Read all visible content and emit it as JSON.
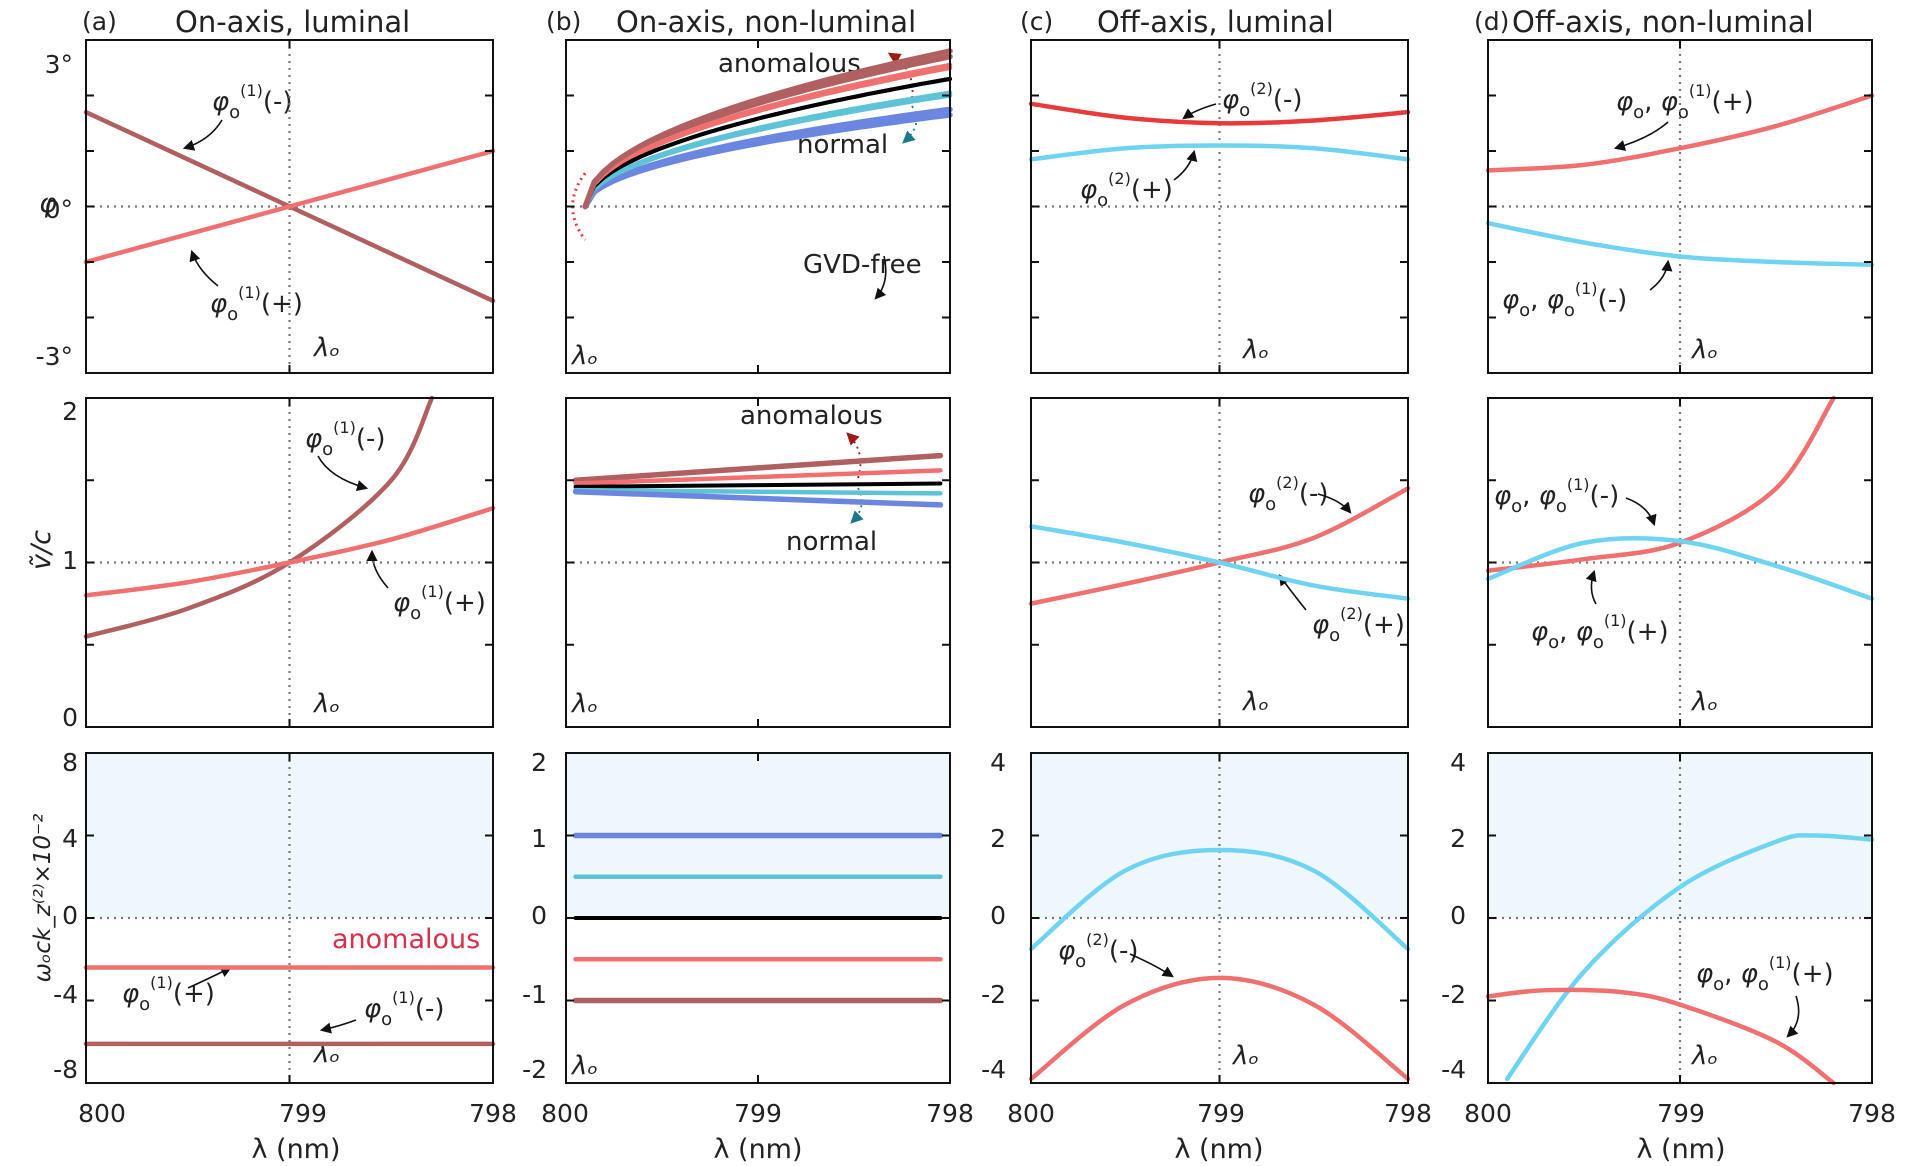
{
  "figure": {
    "columns": [
      {
        "letter": "(a)",
        "title": "On-axis, luminal"
      },
      {
        "letter": "(b)",
        "title": "On-axis, non-luminal"
      },
      {
        "letter": "(c)",
        "title": "Off-axis, luminal"
      },
      {
        "letter": "(d)",
        "title": "Off-axis, non-luminal"
      }
    ],
    "xlabel": "λ (nm)",
    "ylabels": {
      "row1": "φ",
      "row2": "ṽ/c",
      "row3": "ωₒck_z⁽²⁾×10⁻²"
    },
    "lambda0_label": "λₒ",
    "x_ticks": [
      "800",
      "799",
      "798"
    ],
    "row1_ticks": [
      "3°",
      "0°",
      "-3°"
    ],
    "row2_ticks": [
      "2",
      "1",
      "0"
    ],
    "row3a_ticks": [
      "8",
      "4",
      "0",
      "-4",
      "-8"
    ],
    "row3b_ticks": [
      "2",
      "1",
      "0",
      "-1",
      "-2"
    ],
    "row3cd_ticks": [
      "4",
      "2",
      "0",
      "-2",
      "-4"
    ],
    "region_normal": "normal",
    "region_anomalous": "anomalous",
    "label_normal": "normal",
    "label_anomalous": "anomalous",
    "label_gvd_free": "GVD-free"
  },
  "colors": {
    "red": "#f07070",
    "darkred": "#b06060",
    "brightred": "#e83a3a",
    "cyan": "#6fd3f2",
    "teal": "#5ec3d6",
    "blue": "#6a86e0",
    "black": "#000000",
    "shade": "#eef8fc",
    "normal_text": "#4fb8e0",
    "anomalous_text": "#d6304a"
  },
  "chart_data": [
    {
      "id": "a1",
      "type": "line",
      "title": "On-axis, luminal",
      "xlabel": "λ (nm)",
      "ylabel": "φ (deg)",
      "xlim": [
        800,
        798
      ],
      "ylim": [
        -3,
        3
      ],
      "series": [
        {
          "name": "φo(1)(-)",
          "color": "darkred",
          "x": [
            800,
            798
          ],
          "y": [
            1.7,
            -1.7
          ]
        },
        {
          "name": "φo(1)(+)",
          "color": "red",
          "x": [
            800,
            798
          ],
          "y": [
            -1.0,
            1.0
          ]
        }
      ]
    },
    {
      "id": "b1",
      "type": "line",
      "title": "On-axis, non-luminal",
      "xlabel": "λ (nm)",
      "ylabel": "φ (deg)",
      "xlim": [
        800,
        798
      ],
      "ylim": [
        -3,
        3
      ],
      "series": [
        {
          "name": "anomalous (outer)",
          "color": "darkred",
          "x0": 799.9,
          "y_end": 2.7,
          "sign": 1
        },
        {
          "name": "anomalous",
          "color": "red",
          "x0": 799.9,
          "y_end": 2.5,
          "sign": 1
        },
        {
          "name": "GVD-free (upper)",
          "color": "black",
          "x0": 799.9,
          "y_end": 2.3,
          "sign": 1
        },
        {
          "name": "normal",
          "color": "teal",
          "x0": 799.9,
          "y_end": 2.05,
          "sign": 1
        },
        {
          "name": "normal (outer)",
          "color": "blue",
          "x0": 799.9,
          "y_end": 1.75,
          "sign": 1
        },
        {
          "name": "normal (outer, lower)",
          "color": "blue",
          "x0": 799.9,
          "y_end": -1.65,
          "sign": -1
        },
        {
          "name": "normal (lower)",
          "color": "teal",
          "x0": 799.9,
          "y_end": -2.0,
          "sign": -1
        },
        {
          "name": "GVD-free",
          "color": "black",
          "x0": 799.9,
          "y_end": -2.3,
          "sign": -1
        },
        {
          "name": "anomalous (lower)",
          "color": "red",
          "x0": 799.9,
          "y_end": -2.55,
          "sign": -1
        },
        {
          "name": "anomalous (outer, lower)",
          "color": "darkred",
          "x0": 799.9,
          "y_end": -2.8,
          "sign": -1
        }
      ]
    },
    {
      "id": "c1",
      "type": "line",
      "title": "Off-axis, luminal",
      "xlabel": "λ (nm)",
      "ylabel": "φ (deg)",
      "xlim": [
        800,
        798
      ],
      "ylim": [
        -3,
        3
      ],
      "series": [
        {
          "name": "φo(2)(-)",
          "color": "brightred",
          "x": [
            800,
            799.5,
            799,
            798.5,
            798
          ],
          "y": [
            1.85,
            1.6,
            1.5,
            1.55,
            1.7
          ]
        },
        {
          "name": "φo(2)(+)",
          "color": "cyan",
          "x": [
            800,
            799.5,
            799,
            798.5,
            798
          ],
          "y": [
            0.85,
            1.05,
            1.1,
            1.05,
            0.85
          ]
        }
      ]
    },
    {
      "id": "d1",
      "type": "line",
      "title": "Off-axis, non-luminal",
      "xlabel": "λ (nm)",
      "ylabel": "φ (deg)",
      "xlim": [
        800,
        798
      ],
      "ylim": [
        -3,
        3
      ],
      "series": [
        {
          "name": "φo, φo(1)(+)",
          "color": "red",
          "x": [
            800,
            799.5,
            799,
            798.5,
            798
          ],
          "y": [
            0.65,
            0.75,
            1.05,
            1.45,
            2.0
          ]
        },
        {
          "name": "φo, φo(1)(-)",
          "color": "cyan",
          "x": [
            800,
            799.5,
            799,
            798.5,
            798
          ],
          "y": [
            -0.3,
            -0.65,
            -0.9,
            -1.0,
            -1.05
          ]
        }
      ]
    },
    {
      "id": "a2",
      "type": "line",
      "xlabel": "λ (nm)",
      "ylabel": "ṽ/c",
      "xlim": [
        800,
        798
      ],
      "ylim": [
        0,
        2
      ],
      "series": [
        {
          "name": "φo(1)(-)",
          "color": "darkred",
          "x": [
            800,
            799.5,
            799,
            798.5,
            798.3
          ],
          "y": [
            0.55,
            0.72,
            1.0,
            1.5,
            2.0
          ]
        },
        {
          "name": "φo(1)(+)",
          "color": "red",
          "x": [
            800,
            799.5,
            799,
            798.5,
            798
          ],
          "y": [
            0.8,
            0.88,
            1.0,
            1.14,
            1.33
          ]
        }
      ]
    },
    {
      "id": "b2",
      "type": "line",
      "xlabel": "λ (nm)",
      "ylabel": "ṽ/c",
      "xlim": [
        800,
        798
      ],
      "ylim": [
        0,
        2
      ],
      "series": [
        {
          "name": "anomalous (outer)",
          "color": "darkred",
          "x": [
            799.95,
            798.05
          ],
          "y": [
            1.5,
            1.65
          ]
        },
        {
          "name": "anomalous",
          "color": "red",
          "x": [
            799.95,
            798.05
          ],
          "y": [
            1.48,
            1.56
          ]
        },
        {
          "name": "GVD-free",
          "color": "black",
          "x": [
            799.95,
            798.05
          ],
          "y": [
            1.46,
            1.48
          ]
        },
        {
          "name": "normal",
          "color": "teal",
          "x": [
            799.95,
            798.05
          ],
          "y": [
            1.44,
            1.42
          ]
        },
        {
          "name": "normal (outer)",
          "color": "blue",
          "x": [
            799.95,
            798.05
          ],
          "y": [
            1.43,
            1.35
          ]
        }
      ]
    },
    {
      "id": "c2",
      "type": "line",
      "xlabel": "λ (nm)",
      "ylabel": "ṽ/c",
      "xlim": [
        800,
        798
      ],
      "ylim": [
        0,
        2
      ],
      "series": [
        {
          "name": "φo(2)(-)",
          "color": "red",
          "x": [
            800,
            799.5,
            799,
            798.5,
            798
          ],
          "y": [
            0.75,
            0.87,
            1.0,
            1.15,
            1.45
          ]
        },
        {
          "name": "φo(2)(+)",
          "color": "cyan",
          "x": [
            800,
            799.5,
            799,
            798.5,
            798
          ],
          "y": [
            1.22,
            1.12,
            1.0,
            0.86,
            0.78
          ]
        }
      ]
    },
    {
      "id": "d2",
      "type": "line",
      "xlabel": "λ (nm)",
      "ylabel": "ṽ/c",
      "xlim": [
        800,
        798
      ],
      "ylim": [
        0,
        2
      ],
      "series": [
        {
          "name": "φo, φo(1)(+)",
          "color": "red",
          "x": [
            800,
            799.5,
            799,
            798.5,
            798.2
          ],
          "y": [
            0.95,
            1.02,
            1.12,
            1.45,
            2.0
          ]
        },
        {
          "name": "φo, φo(1)(-)",
          "color": "cyan",
          "x": [
            800,
            799.5,
            799,
            798.5,
            798
          ],
          "y": [
            0.9,
            1.12,
            1.13,
            0.98,
            0.78
          ]
        }
      ]
    },
    {
      "id": "a3",
      "type": "line",
      "xlabel": "λ (nm)",
      "ylabel": "ωₒck_z⁽²⁾×10⁻²",
      "xlim": [
        800,
        798
      ],
      "ylim": [
        -8,
        8
      ],
      "shaded_ylim": [
        0,
        8
      ],
      "series": [
        {
          "name": "φo(1)(+)",
          "color": "red",
          "x": [
            800,
            798
          ],
          "y": [
            -2.4,
            -2.4
          ]
        },
        {
          "name": "φo(1)(-)",
          "color": "darkred",
          "x": [
            800,
            798
          ],
          "y": [
            -6.1,
            -6.1
          ]
        }
      ]
    },
    {
      "id": "b3",
      "type": "line",
      "xlabel": "λ (nm)",
      "ylabel": "ωₒck_z⁽²⁾×10⁻²",
      "xlim": [
        800,
        798
      ],
      "ylim": [
        -2,
        2
      ],
      "shaded_ylim": [
        0,
        2
      ],
      "series": [
        {
          "name": "normal (outer)",
          "color": "blue",
          "x": [
            799.95,
            798.05
          ],
          "y": [
            1.0,
            1.0
          ]
        },
        {
          "name": "normal",
          "color": "teal",
          "x": [
            799.95,
            798.05
          ],
          "y": [
            0.5,
            0.5
          ]
        },
        {
          "name": "GVD-free",
          "color": "black",
          "x": [
            799.95,
            798.05
          ],
          "y": [
            0.0,
            0.0
          ]
        },
        {
          "name": "anomalous",
          "color": "red",
          "x": [
            799.95,
            798.05
          ],
          "y": [
            -0.5,
            -0.5
          ]
        },
        {
          "name": "anomalous (outer)",
          "color": "darkred",
          "x": [
            799.95,
            798.05
          ],
          "y": [
            -1.0,
            -1.0
          ]
        }
      ]
    },
    {
      "id": "c3",
      "type": "line",
      "xlabel": "λ (nm)",
      "ylabel": "ωₒck_z⁽²⁾×10⁻²",
      "xlim": [
        800,
        798
      ],
      "ylim": [
        -4,
        4
      ],
      "shaded_ylim": [
        0,
        4
      ],
      "series": [
        {
          "name": "φo(2)(+)",
          "color": "cyan",
          "x": [
            800,
            799.5,
            799,
            798.5,
            798
          ],
          "y": [
            -0.75,
            1.15,
            1.65,
            1.15,
            -0.75
          ]
        },
        {
          "name": "φo(2)(-)",
          "color": "red",
          "x": [
            800,
            799.5,
            799,
            798.5,
            798
          ],
          "y": [
            -3.9,
            -2.1,
            -1.45,
            -2.1,
            -3.9
          ]
        }
      ]
    },
    {
      "id": "d3",
      "type": "line",
      "xlabel": "λ (nm)",
      "ylabel": "ωₒck_z⁽²⁾×10⁻²",
      "xlim": [
        800,
        798
      ],
      "ylim": [
        -4,
        4
      ],
      "shaded_ylim": [
        0,
        4
      ],
      "series": [
        {
          "name": "φo, φo(1)(-)",
          "color": "cyan",
          "x": [
            799.9,
            799.5,
            799,
            798.5,
            798.3,
            798
          ],
          "y": [
            -3.9,
            -1.3,
            0.75,
            1.85,
            2.0,
            1.9
          ]
        },
        {
          "name": "φo, φo(1)(+)",
          "color": "red",
          "x": [
            800,
            799.7,
            799.3,
            799,
            798.5,
            798.2
          ],
          "y": [
            -1.9,
            -1.75,
            -1.8,
            -2.1,
            -3.0,
            -4.0
          ]
        }
      ]
    }
  ]
}
